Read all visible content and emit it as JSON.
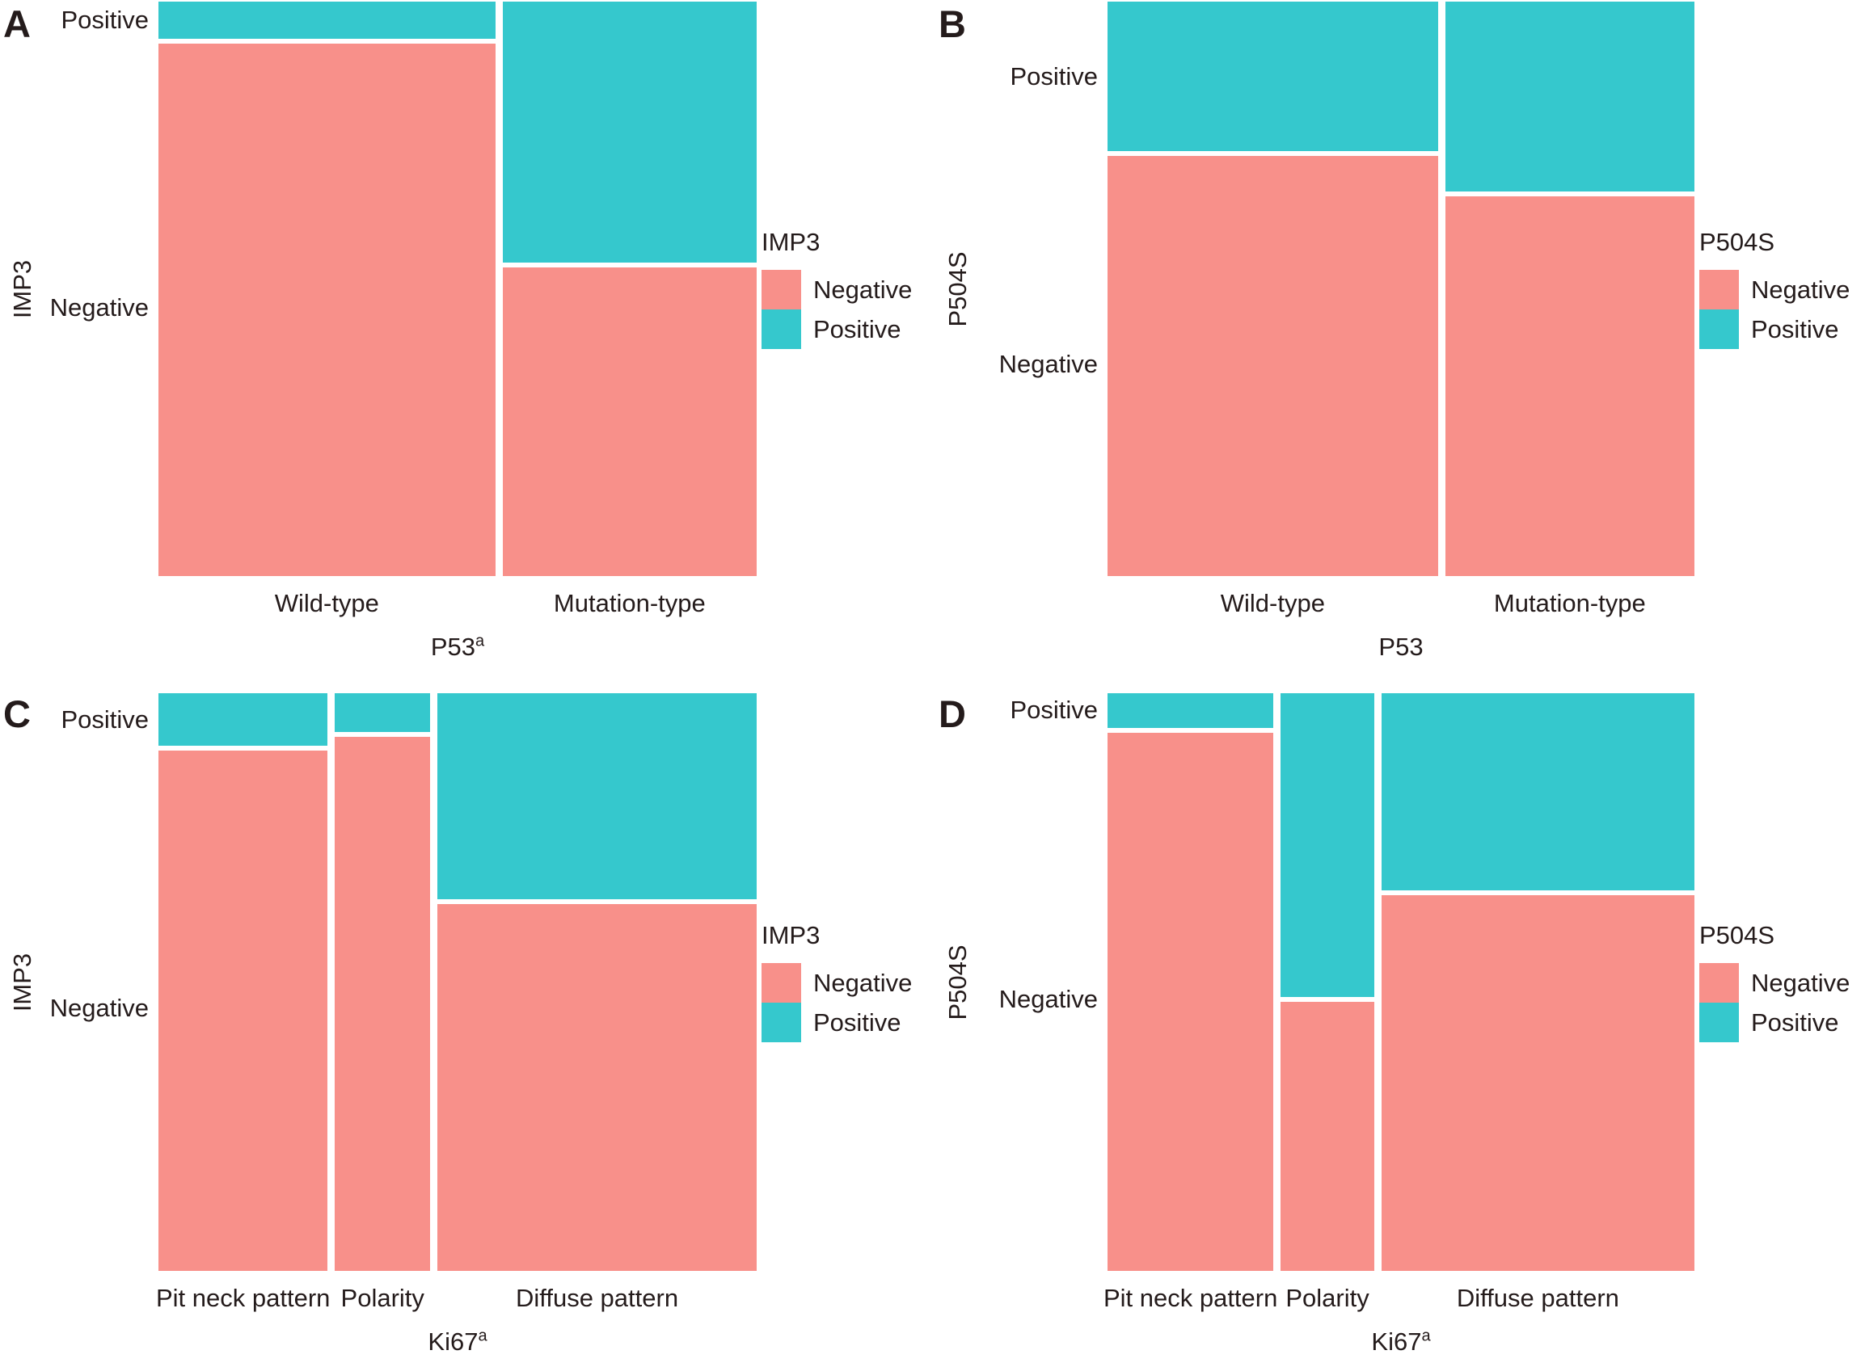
{
  "figure": {
    "background": "#ffffff",
    "text_color": "#241b1b",
    "negative_color": "#F8908A",
    "positive_color": "#35C8CD"
  },
  "chart_data": [
    {
      "type": "mosaic",
      "panel": "A",
      "x_var": "P53",
      "x_var_superscript": "a",
      "y_var": "IMP3",
      "legend_title": "IMP3",
      "legend_items": [
        {
          "label": "Negative",
          "color": "#F8908A"
        },
        {
          "label": "Positive",
          "color": "#35C8CD"
        }
      ],
      "y_categories": [
        "Positive",
        "Negative"
      ],
      "x_categories": [
        "Wild-type",
        "Mutation-type"
      ],
      "x_width_fracs": [
        0.57,
        0.43
      ],
      "positive_height_fracs": [
        0.065,
        0.458
      ],
      "colors": {
        "Negative": "#F8908A",
        "Positive": "#35C8CD"
      }
    },
    {
      "type": "mosaic",
      "panel": "B",
      "x_var": "P53",
      "x_var_superscript": "",
      "y_var": "P504S",
      "legend_title": "P504S",
      "legend_items": [
        {
          "label": "Negative",
          "color": "#F8908A"
        },
        {
          "label": "Positive",
          "color": "#35C8CD"
        }
      ],
      "y_categories": [
        "Positive",
        "Negative"
      ],
      "x_categories": [
        "Wild-type",
        "Mutation-type"
      ],
      "x_width_fracs": [
        0.57,
        0.43
      ],
      "positive_height_fracs": [
        0.262,
        0.333
      ],
      "colors": {
        "Negative": "#F8908A",
        "Positive": "#35C8CD"
      }
    },
    {
      "type": "mosaic",
      "panel": "C",
      "x_var": "Ki67",
      "x_var_superscript": "a",
      "y_var": "IMP3",
      "legend_title": "IMP3",
      "legend_items": [
        {
          "label": "Negative",
          "color": "#F8908A"
        },
        {
          "label": "Positive",
          "color": "#35C8CD"
        }
      ],
      "y_categories": [
        "Positive",
        "Negative"
      ],
      "x_categories": [
        "Pit neck pattern",
        "Polarity",
        "Diffuse pattern"
      ],
      "x_width_fracs": [
        0.29,
        0.163,
        0.547
      ],
      "positive_height_fracs": [
        0.092,
        0.067,
        0.36
      ],
      "colors": {
        "Negative": "#F8908A",
        "Positive": "#35C8CD"
      }
    },
    {
      "type": "mosaic",
      "panel": "D",
      "x_var": "Ki67",
      "x_var_superscript": "a",
      "y_var": "P504S",
      "legend_title": "P504S",
      "legend_items": [
        {
          "label": "Negative",
          "color": "#F8908A"
        },
        {
          "label": "Positive",
          "color": "#35C8CD"
        }
      ],
      "y_categories": [
        "Positive",
        "Negative"
      ],
      "x_categories": [
        "Pit neck pattern",
        "Polarity",
        "Diffuse pattern"
      ],
      "x_width_fracs": [
        0.29,
        0.163,
        0.547
      ],
      "positive_height_fracs": [
        0.06,
        0.53,
        0.344
      ],
      "colors": {
        "Negative": "#F8908A",
        "Positive": "#35C8CD"
      }
    }
  ]
}
